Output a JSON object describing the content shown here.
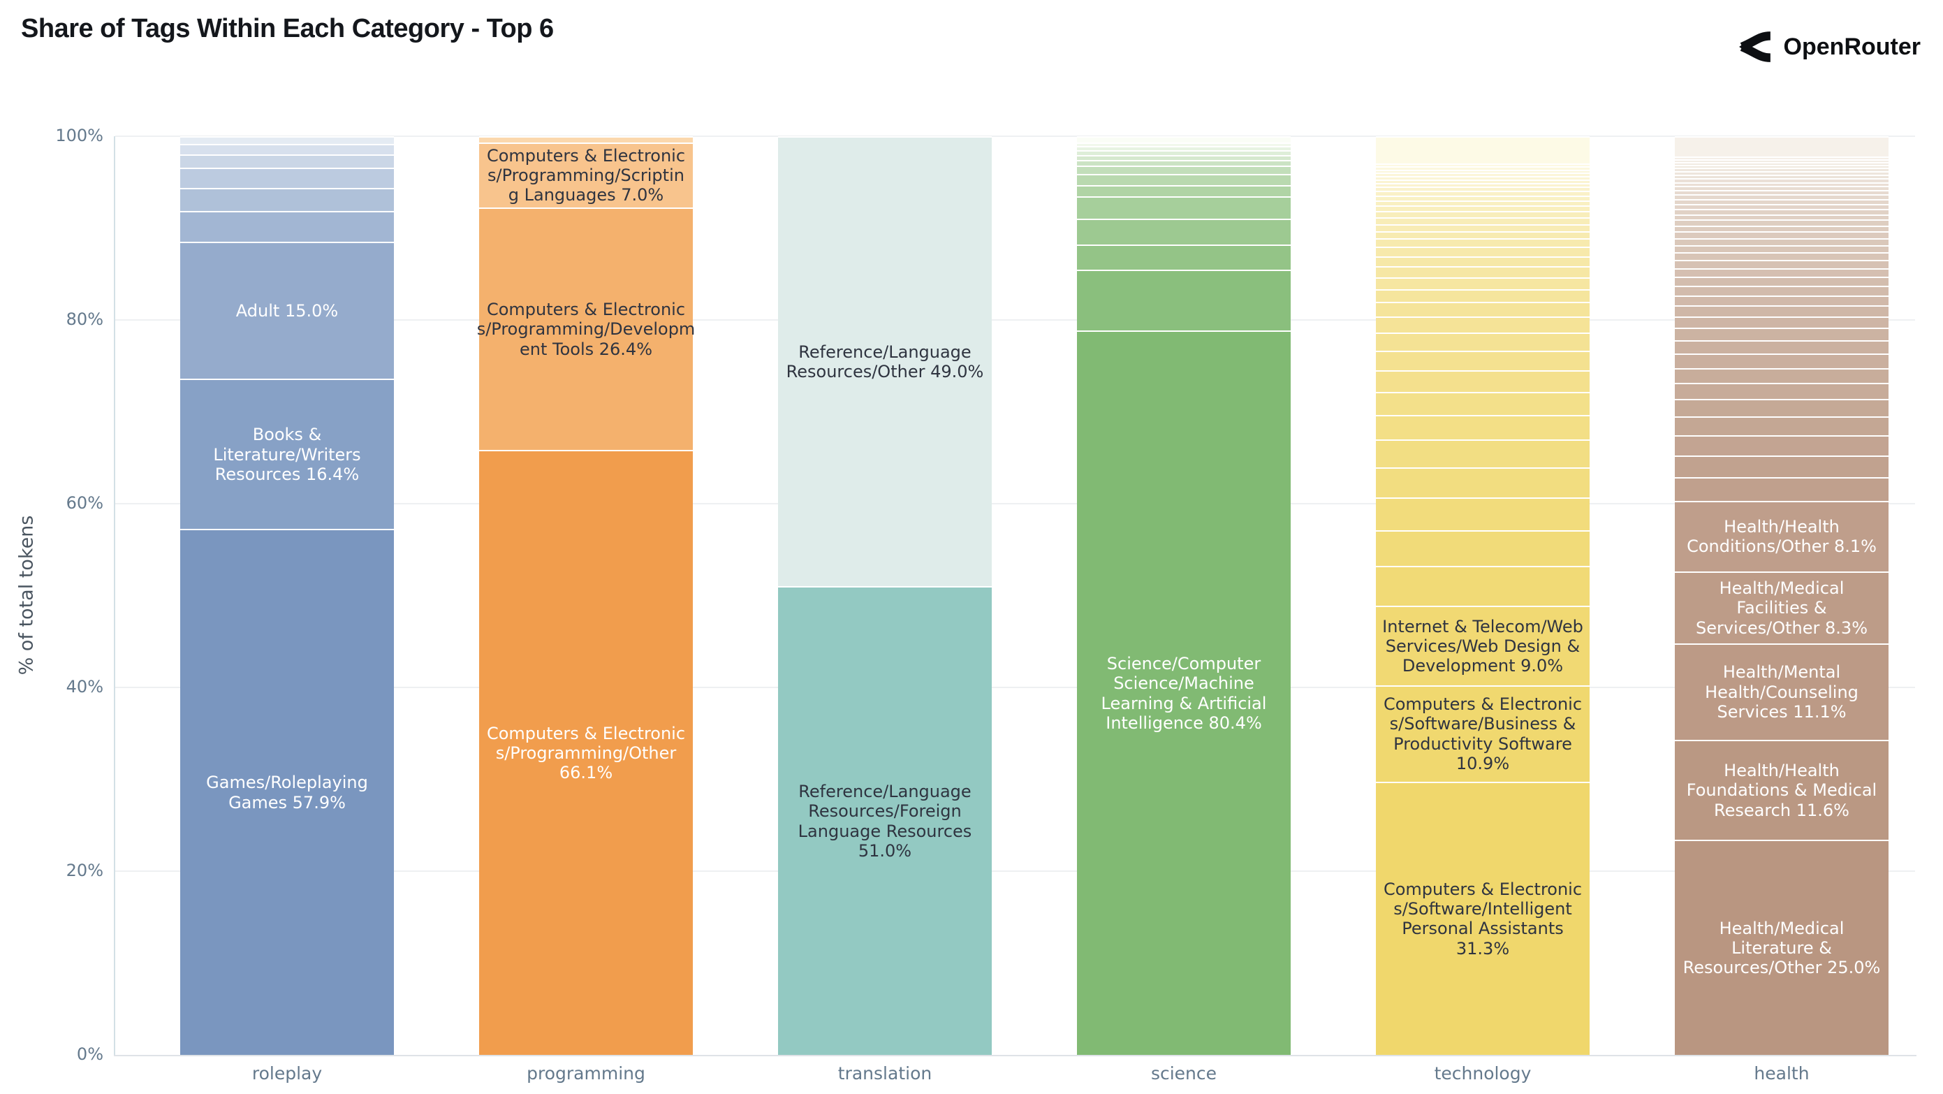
{
  "header": {
    "title": "Share of Tags Within Each Category - Top 6",
    "brand": "OpenRouter"
  },
  "colors": {
    "background": "#ffffff",
    "title_text": "#14171c",
    "brand_text": "#0d0f12",
    "axis_text": "#64798c",
    "ylabel_text": "#4a5560",
    "grid_line": "#eef0f2",
    "yaxis_line": "#d3e0e6",
    "xaxis_line": "#dfe3e7",
    "segment_edge": "#ffffff",
    "label_dark": "#2f3440",
    "label_light": "#ffffff"
  },
  "chart_data": {
    "type": "bar",
    "stacked": true,
    "units": "percent_of_total_tokens",
    "title": "Share of Tags Within Each Category - Top 6",
    "xlabel": "",
    "ylabel": "% of total tokens",
    "ylim": [
      0,
      100
    ],
    "yticks": [
      0,
      20,
      40,
      60,
      80,
      100
    ],
    "ytick_labels": [
      "0%",
      "20%",
      "40%",
      "60%",
      "80%",
      "100%"
    ],
    "grid": "horizontal",
    "legend_position": "none",
    "categories": [
      "roleplay",
      "programming",
      "translation",
      "science",
      "technology",
      "health"
    ],
    "bars": [
      {
        "category": "roleplay",
        "base_color": "#7a96bf",
        "light_color": "#e4ebf3",
        "segments": [
          {
            "value": 57.9,
            "label": "Games/Roleplaying\nGames 57.9%",
            "label_color": "#ffffff"
          },
          {
            "value": 16.4,
            "label": "Books &\nLiterature/Writers\nResources 16.4%",
            "label_color": "#ffffff"
          },
          {
            "value": 15.0,
            "label": "Adult 15.0%",
            "label_color": "#ffffff"
          },
          {
            "value": 3.2
          },
          {
            "value": 2.4
          },
          {
            "value": 2.1
          },
          {
            "value": 1.3
          },
          {
            "value": 1.0
          },
          {
            "value": 0.7
          }
        ]
      },
      {
        "category": "programming",
        "base_color": "#f19d4d",
        "light_color": "#fbd8ad",
        "segments": [
          {
            "value": 66.1,
            "label": "Computers & Electronic\ns/Programming/Other\n66.1%",
            "label_color": "#ffffff"
          },
          {
            "value": 26.4,
            "label": "Computers & Electronic\ns/Programming/Developm\nent Tools 26.4%",
            "label_color": "#2f3440"
          },
          {
            "value": 7.0,
            "label": "Computers & Electronic\ns/Programming/Scriptin\ng Languages 7.0%",
            "label_color": "#2f3440"
          },
          {
            "value": 0.5
          }
        ]
      },
      {
        "category": "translation",
        "base_color": "#93c9c2",
        "light_color": "#dfecea",
        "segments": [
          {
            "value": 51.0,
            "label": "Reference/Language\nResources/Foreign\nLanguage Resources\n51.0%",
            "label_color": "#2f3440"
          },
          {
            "value": 49.0,
            "label": "Reference/Language\nResources/Other 49.0%",
            "label_color": "#2f3440"
          }
        ]
      },
      {
        "category": "science",
        "base_color": "#81ba73",
        "light_color": "#fafdf6",
        "segments": [
          {
            "value": 80.4,
            "label": "Science/Computer\nScience/Machine\nLearning & Artificial\nIntelligence 80.4%",
            "label_color": "#ffffff"
          },
          {
            "value": 6.6
          },
          {
            "value": 2.7
          },
          {
            "value": 2.7
          },
          {
            "value": 2.3
          },
          {
            "value": 1.1
          },
          {
            "value": 1.1
          },
          {
            "value": 0.8
          },
          {
            "value": 0.45
          },
          {
            "value": 0.4
          },
          {
            "value": 0.35
          },
          {
            "value": 0.3
          },
          {
            "value": 0.25
          },
          {
            "value": 0.55
          }
        ]
      },
      {
        "category": "technology",
        "base_color": "#f0d76c",
        "light_color": "#fdfae6",
        "segments": [
          {
            "value": 31.3,
            "label": "Computers & Electronic\ns/Software/Intelligent\nPersonal Assistants\n31.3%",
            "label_color": "#2f3440"
          },
          {
            "value": 10.9,
            "label": "Computers & Electronic\ns/Software/Business &\nProductivity Software\n10.9%",
            "label_color": "#2f3440"
          },
          {
            "value": 9.0,
            "label": "Internet & Telecom/Web\nServices/Web Design &\nDevelopment 9.0%",
            "label_color": "#2f3440"
          },
          {
            "value": 4.4
          },
          {
            "value": 4.0
          },
          {
            "value": 3.6
          },
          {
            "value": 3.3
          },
          {
            "value": 3.0
          },
          {
            "value": 2.7
          },
          {
            "value": 2.5
          },
          {
            "value": 2.3
          },
          {
            "value": 2.1
          },
          {
            "value": 1.9
          },
          {
            "value": 1.7
          },
          {
            "value": 1.5
          },
          {
            "value": 1.35
          },
          {
            "value": 1.2
          },
          {
            "value": 1.1
          },
          {
            "value": 1.0
          },
          {
            "value": 0.9
          },
          {
            "value": 0.8
          },
          {
            "value": 0.7
          },
          {
            "value": 0.65
          },
          {
            "value": 0.6
          },
          {
            "value": 0.55
          },
          {
            "value": 0.5
          },
          {
            "value": 0.45
          },
          {
            "value": 0.4
          },
          {
            "value": 0.35
          },
          {
            "value": 0.3
          },
          {
            "value": 0.28
          },
          {
            "value": 0.26
          },
          {
            "value": 0.24
          },
          {
            "value": 0.22
          },
          {
            "value": 0.2
          },
          {
            "value": 0.18
          },
          {
            "value": 0.16
          },
          {
            "value": 3.0
          }
        ]
      },
      {
        "category": "health",
        "base_color": "#b99681",
        "light_color": "#f6f1ea",
        "segments": [
          {
            "value": 25.0,
            "label": "Health/Medical\nLiterature &\nResources/Other 25.0%",
            "label_color": "#ffffff"
          },
          {
            "value": 11.6,
            "label": "Health/Health\nFoundations & Medical\nResearch 11.6%",
            "label_color": "#ffffff"
          },
          {
            "value": 11.1,
            "label": "Health/Mental\nHealth/Counseling\nServices 11.1%",
            "label_color": "#ffffff"
          },
          {
            "value": 8.3,
            "label": "Health/Medical\nFacilities &\nServices/Other 8.3%",
            "label_color": "#ffffff"
          },
          {
            "value": 8.1,
            "label": "Health/Health\nConditions/Other 8.1%",
            "label_color": "#ffffff"
          },
          {
            "value": 2.6
          },
          {
            "value": 2.4
          },
          {
            "value": 2.2
          },
          {
            "value": 2.0
          },
          {
            "value": 1.9
          },
          {
            "value": 1.7
          },
          {
            "value": 1.6
          },
          {
            "value": 1.5
          },
          {
            "value": 1.4
          },
          {
            "value": 1.3
          },
          {
            "value": 1.2
          },
          {
            "value": 1.1
          },
          {
            "value": 1.0
          },
          {
            "value": 0.95
          },
          {
            "value": 0.9
          },
          {
            "value": 0.85
          },
          {
            "value": 0.8
          },
          {
            "value": 0.75
          },
          {
            "value": 0.7
          },
          {
            "value": 0.65
          },
          {
            "value": 0.6
          },
          {
            "value": 0.55
          },
          {
            "value": 0.5
          },
          {
            "value": 0.48
          },
          {
            "value": 0.45
          },
          {
            "value": 0.42
          },
          {
            "value": 0.4
          },
          {
            "value": 0.38
          },
          {
            "value": 0.35
          },
          {
            "value": 0.32
          },
          {
            "value": 0.3
          },
          {
            "value": 0.28
          },
          {
            "value": 0.26
          },
          {
            "value": 0.24
          },
          {
            "value": 0.22
          },
          {
            "value": 0.2
          },
          {
            "value": 0.18
          },
          {
            "value": 0.16
          },
          {
            "value": 0.15
          },
          {
            "value": 2.2
          }
        ]
      }
    ]
  }
}
